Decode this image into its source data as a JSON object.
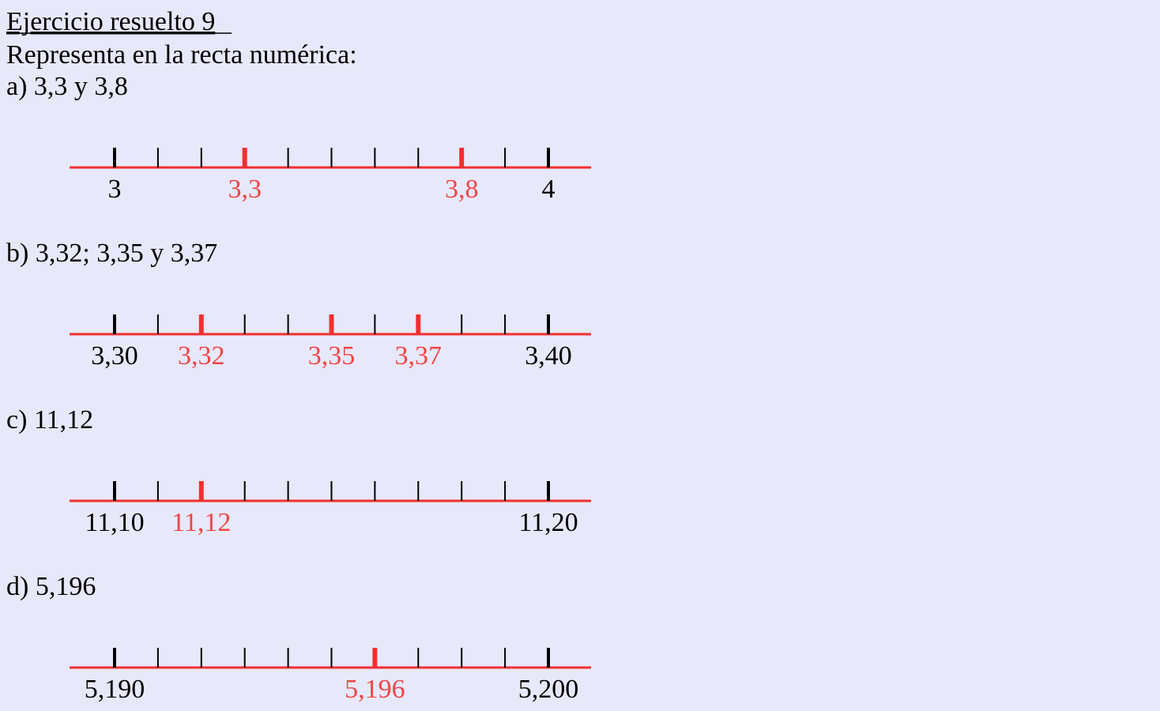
{
  "header": {
    "title": "Ejercicio resuelto 9",
    "instruction": "Representa en la recta numérica:"
  },
  "parts": [
    {
      "label": "a) 3,3 y 3,8",
      "line": {
        "start": "3",
        "end": "4",
        "marks": [
          "3,3",
          "3,8"
        ]
      }
    },
    {
      "label": "b) 3,32; 3,35 y 3,37",
      "line": {
        "start": "3,30",
        "end": "3,40",
        "marks": [
          "3,32",
          "3,35",
          "3,37"
        ]
      }
    },
    {
      "label": "c) 11,12",
      "line": {
        "start": "11,10",
        "end": "11,20",
        "marks": [
          "11,12"
        ]
      }
    },
    {
      "label": "d) 5,196",
      "line": {
        "start": "5,190",
        "end": "5,200",
        "marks": [
          "5,196"
        ]
      }
    }
  ]
}
